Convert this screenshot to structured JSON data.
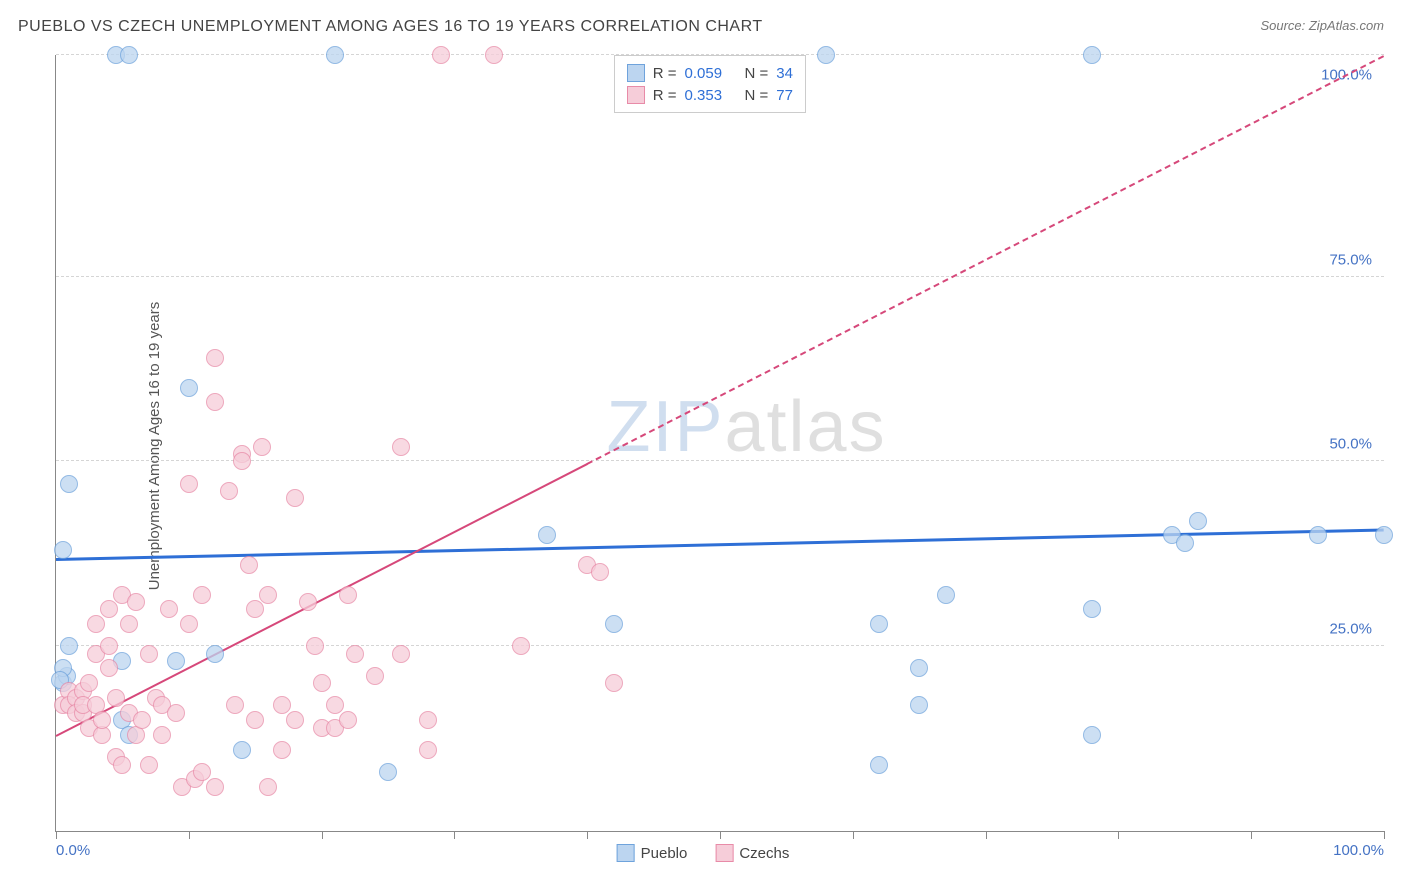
{
  "title": "PUEBLO VS CZECH UNEMPLOYMENT AMONG AGES 16 TO 19 YEARS CORRELATION CHART",
  "source": "Source: ZipAtlas.com",
  "y_axis_label": "Unemployment Among Ages 16 to 19 years",
  "watermark_a": "ZIP",
  "watermark_b": "atlas",
  "chart": {
    "type": "scatter",
    "xlim": [
      0,
      100
    ],
    "ylim": [
      0,
      105
    ],
    "x_tick_positions": [
      0,
      10,
      20,
      30,
      40,
      50,
      60,
      70,
      80,
      90,
      100
    ],
    "y_gridlines": [
      25,
      50,
      75,
      105
    ],
    "y_tick_labels": [
      {
        "pos": 25,
        "label": "25.0%"
      },
      {
        "pos": 50,
        "label": "50.0%"
      },
      {
        "pos": 75,
        "label": "75.0%"
      },
      {
        "pos": 100,
        "label": "100.0%"
      }
    ],
    "x_tick_labels": [
      {
        "pos": 0,
        "label": "0.0%"
      },
      {
        "pos": 100,
        "label": "100.0%"
      }
    ],
    "background_color": "#ffffff",
    "grid_color": "#d5d5d5",
    "marker_radius": 9,
    "marker_border_width": 1.3,
    "marker_fill_opacity": 0.35
  },
  "top_legend": {
    "rows": [
      {
        "swatch_fill": "#bcd5f0",
        "swatch_border": "#6fa3dc",
        "r_label": "R =",
        "r_val": "0.059",
        "n_label": "N =",
        "n_val": "34"
      },
      {
        "swatch_fill": "#f6cdd9",
        "swatch_border": "#e88ba8",
        "r_label": "R =",
        "r_val": "0.353",
        "n_label": "N =",
        "n_val": "77"
      }
    ],
    "r_color": "#2e6fd6",
    "n_color": "#2e6fd6",
    "label_color": "#444"
  },
  "bottom_legend": {
    "items": [
      {
        "swatch_fill": "#bcd5f0",
        "swatch_border": "#6fa3dc",
        "label": "Pueblo"
      },
      {
        "swatch_fill": "#f6cdd9",
        "swatch_border": "#e88ba8",
        "label": "Czechs"
      }
    ]
  },
  "series": [
    {
      "name": "Pueblo",
      "fill": "#bcd5f0",
      "border": "#6fa3dc",
      "trend": {
        "y_at_x0": 37,
        "y_at_x100": 41,
        "color": "#2e6fd6",
        "width": 3,
        "dash_from_x": null
      },
      "points": [
        {
          "x": 0.5,
          "y": 20
        },
        {
          "x": 0.8,
          "y": 21
        },
        {
          "x": 0.5,
          "y": 22
        },
        {
          "x": 0.3,
          "y": 20.5
        },
        {
          "x": 1.0,
          "y": 25
        },
        {
          "x": 0.5,
          "y": 38
        },
        {
          "x": 1.0,
          "y": 47
        },
        {
          "x": 4.5,
          "y": 105
        },
        {
          "x": 5.5,
          "y": 105
        },
        {
          "x": 5,
          "y": 23
        },
        {
          "x": 5,
          "y": 15
        },
        {
          "x": 5.5,
          "y": 13
        },
        {
          "x": 9,
          "y": 23
        },
        {
          "x": 10,
          "y": 60
        },
        {
          "x": 12,
          "y": 24
        },
        {
          "x": 14,
          "y": 11
        },
        {
          "x": 21,
          "y": 105
        },
        {
          "x": 25,
          "y": 8
        },
        {
          "x": 37,
          "y": 40
        },
        {
          "x": 42,
          "y": 28
        },
        {
          "x": 58,
          "y": 105
        },
        {
          "x": 62,
          "y": 28
        },
        {
          "x": 62,
          "y": 9
        },
        {
          "x": 65,
          "y": 22
        },
        {
          "x": 65,
          "y": 17
        },
        {
          "x": 67,
          "y": 32
        },
        {
          "x": 78,
          "y": 105
        },
        {
          "x": 78,
          "y": 30
        },
        {
          "x": 78,
          "y": 13
        },
        {
          "x": 84,
          "y": 40
        },
        {
          "x": 85,
          "y": 39
        },
        {
          "x": 86,
          "y": 42
        },
        {
          "x": 95,
          "y": 40
        },
        {
          "x": 100,
          "y": 40
        }
      ]
    },
    {
      "name": "Czechs",
      "fill": "#f6cdd9",
      "border": "#e88ba8",
      "trend": {
        "y_at_x0": 13,
        "y_at_x100": 105,
        "color": "#d6487a",
        "width": 2.5,
        "solid_to_x": 40,
        "dash_to_x": 100
      },
      "points": [
        {
          "x": 0.5,
          "y": 17
        },
        {
          "x": 1,
          "y": 19
        },
        {
          "x": 1,
          "y": 17
        },
        {
          "x": 1.5,
          "y": 18
        },
        {
          "x": 1.5,
          "y": 16
        },
        {
          "x": 2,
          "y": 16
        },
        {
          "x": 2,
          "y": 19
        },
        {
          "x": 2,
          "y": 17
        },
        {
          "x": 2.5,
          "y": 20
        },
        {
          "x": 2.5,
          "y": 14
        },
        {
          "x": 3,
          "y": 28
        },
        {
          "x": 3,
          "y": 24
        },
        {
          "x": 3,
          "y": 17
        },
        {
          "x": 3.5,
          "y": 13
        },
        {
          "x": 3.5,
          "y": 15
        },
        {
          "x": 4,
          "y": 30
        },
        {
          "x": 4,
          "y": 25
        },
        {
          "x": 4,
          "y": 22
        },
        {
          "x": 4.5,
          "y": 18
        },
        {
          "x": 4.5,
          "y": 10
        },
        {
          "x": 5,
          "y": 9
        },
        {
          "x": 5,
          "y": 32
        },
        {
          "x": 5.5,
          "y": 28
        },
        {
          "x": 5.5,
          "y": 16
        },
        {
          "x": 6,
          "y": 31
        },
        {
          "x": 6,
          "y": 13
        },
        {
          "x": 6.5,
          "y": 15
        },
        {
          "x": 7,
          "y": 9
        },
        {
          "x": 7,
          "y": 24
        },
        {
          "x": 7.5,
          "y": 18
        },
        {
          "x": 8,
          "y": 13
        },
        {
          "x": 8,
          "y": 17
        },
        {
          "x": 8.5,
          "y": 30
        },
        {
          "x": 9,
          "y": 16
        },
        {
          "x": 9.5,
          "y": 6
        },
        {
          "x": 10,
          "y": 28
        },
        {
          "x": 10,
          "y": 47
        },
        {
          "x": 10.5,
          "y": 7
        },
        {
          "x": 11,
          "y": 8
        },
        {
          "x": 11,
          "y": 32
        },
        {
          "x": 12,
          "y": 64
        },
        {
          "x": 12,
          "y": 58
        },
        {
          "x": 12,
          "y": 6
        },
        {
          "x": 13,
          "y": 46
        },
        {
          "x": 13.5,
          "y": 17
        },
        {
          "x": 14,
          "y": 51
        },
        {
          "x": 14,
          "y": 50
        },
        {
          "x": 14.5,
          "y": 36
        },
        {
          "x": 15,
          "y": 30
        },
        {
          "x": 15,
          "y": 15
        },
        {
          "x": 15.5,
          "y": 52
        },
        {
          "x": 16,
          "y": 6
        },
        {
          "x": 16,
          "y": 32
        },
        {
          "x": 17,
          "y": 11
        },
        {
          "x": 17,
          "y": 17
        },
        {
          "x": 18,
          "y": 45
        },
        {
          "x": 18,
          "y": 15
        },
        {
          "x": 19,
          "y": 31
        },
        {
          "x": 19.5,
          "y": 25
        },
        {
          "x": 20,
          "y": 14
        },
        {
          "x": 20,
          "y": 20
        },
        {
          "x": 21,
          "y": 14
        },
        {
          "x": 21,
          "y": 17
        },
        {
          "x": 22,
          "y": 15
        },
        {
          "x": 22,
          "y": 32
        },
        {
          "x": 22.5,
          "y": 24
        },
        {
          "x": 24,
          "y": 21
        },
        {
          "x": 26,
          "y": 52
        },
        {
          "x": 26,
          "y": 24
        },
        {
          "x": 28,
          "y": 11
        },
        {
          "x": 28,
          "y": 15
        },
        {
          "x": 29,
          "y": 105
        },
        {
          "x": 33,
          "y": 105
        },
        {
          "x": 35,
          "y": 25
        },
        {
          "x": 40,
          "y": 36
        },
        {
          "x": 41,
          "y": 35
        },
        {
          "x": 42,
          "y": 20
        }
      ]
    }
  ]
}
